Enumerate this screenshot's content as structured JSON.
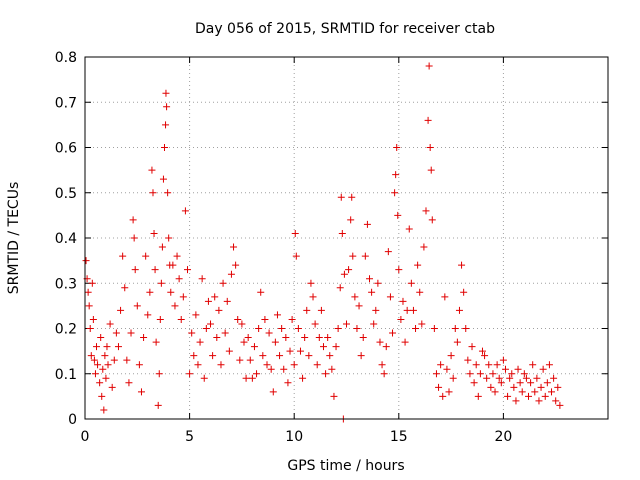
{
  "chart_data": {
    "type": "scatter",
    "title": "Day 056 of 2015, SRMTID for receiver ctab",
    "xlabel": "GPS time / hours",
    "ylabel": "SRMTID / TECUs",
    "xlim": [
      0,
      25
    ],
    "ylim": [
      0,
      0.8
    ],
    "grid": true,
    "marker": "plus",
    "color": "#e00000",
    "x_ticks": [
      0,
      5,
      10,
      15,
      20
    ],
    "x_tick_labels": [
      "0",
      "5",
      "10",
      "15",
      "20"
    ],
    "y_ticks": [
      0,
      0.1,
      0.2,
      0.3,
      0.4,
      0.5,
      0.6,
      0.7,
      0.8
    ],
    "y_tick_labels": [
      "0",
      "0.1",
      "0.2",
      "0.3",
      "0.4",
      "0.5",
      "0.6",
      "0.7",
      "0.8"
    ],
    "series": [
      {
        "name": "SRMTID",
        "points": [
          [
            0.05,
            0.35
          ],
          [
            0.1,
            0.31
          ],
          [
            0.15,
            0.28
          ],
          [
            0.2,
            0.25
          ],
          [
            0.25,
            0.2
          ],
          [
            0.3,
            0.14
          ],
          [
            0.35,
            0.3
          ],
          [
            0.4,
            0.22
          ],
          [
            0.45,
            0.13
          ],
          [
            0.5,
            0.1
          ],
          [
            0.55,
            0.16
          ],
          [
            0.6,
            0.12
          ],
          [
            0.7,
            0.08
          ],
          [
            0.75,
            0.18
          ],
          [
            0.8,
            0.05
          ],
          [
            0.85,
            0.11
          ],
          [
            0.9,
            0.02
          ],
          [
            0.95,
            0.14
          ],
          [
            1.0,
            0.09
          ],
          [
            1.05,
            0.16
          ],
          [
            1.1,
            0.12
          ],
          [
            1.2,
            0.21
          ],
          [
            1.3,
            0.07
          ],
          [
            1.4,
            0.13
          ],
          [
            1.5,
            0.19
          ],
          [
            1.6,
            0.16
          ],
          [
            1.7,
            0.24
          ],
          [
            1.8,
            0.36
          ],
          [
            1.9,
            0.29
          ],
          [
            2.0,
            0.13
          ],
          [
            2.1,
            0.08
          ],
          [
            2.2,
            0.19
          ],
          [
            2.3,
            0.44
          ],
          [
            2.35,
            0.4
          ],
          [
            2.4,
            0.33
          ],
          [
            2.5,
            0.25
          ],
          [
            2.6,
            0.12
          ],
          [
            2.7,
            0.06
          ],
          [
            2.8,
            0.18
          ],
          [
            2.9,
            0.36
          ],
          [
            3.0,
            0.23
          ],
          [
            3.1,
            0.28
          ],
          [
            3.2,
            0.55
          ],
          [
            3.25,
            0.5
          ],
          [
            3.3,
            0.41
          ],
          [
            3.35,
            0.33
          ],
          [
            3.4,
            0.17
          ],
          [
            3.5,
            0.03
          ],
          [
            3.55,
            0.1
          ],
          [
            3.6,
            0.22
          ],
          [
            3.65,
            0.3
          ],
          [
            3.7,
            0.38
          ],
          [
            3.75,
            0.53
          ],
          [
            3.8,
            0.6
          ],
          [
            3.85,
            0.65
          ],
          [
            3.87,
            0.72
          ],
          [
            3.9,
            0.69
          ],
          [
            3.95,
            0.5
          ],
          [
            4.0,
            0.4
          ],
          [
            4.05,
            0.34
          ],
          [
            4.1,
            0.28
          ],
          [
            4.2,
            0.34
          ],
          [
            4.3,
            0.25
          ],
          [
            4.4,
            0.36
          ],
          [
            4.5,
            0.31
          ],
          [
            4.6,
            0.22
          ],
          [
            4.7,
            0.27
          ],
          [
            4.8,
            0.46
          ],
          [
            4.9,
            0.33
          ],
          [
            5.0,
            0.1
          ],
          [
            5.1,
            0.19
          ],
          [
            5.2,
            0.14
          ],
          [
            5.3,
            0.23
          ],
          [
            5.4,
            0.12
          ],
          [
            5.5,
            0.17
          ],
          [
            5.6,
            0.31
          ],
          [
            5.7,
            0.09
          ],
          [
            5.8,
            0.2
          ],
          [
            5.9,
            0.26
          ],
          [
            6.0,
            0.21
          ],
          [
            6.1,
            0.14
          ],
          [
            6.2,
            0.27
          ],
          [
            6.3,
            0.18
          ],
          [
            6.4,
            0.24
          ],
          [
            6.5,
            0.12
          ],
          [
            6.6,
            0.3
          ],
          [
            6.7,
            0.19
          ],
          [
            6.8,
            0.26
          ],
          [
            6.9,
            0.15
          ],
          [
            7.0,
            0.32
          ],
          [
            7.1,
            0.38
          ],
          [
            7.2,
            0.34
          ],
          [
            7.3,
            0.22
          ],
          [
            7.4,
            0.13
          ],
          [
            7.5,
            0.21
          ],
          [
            7.6,
            0.17
          ],
          [
            7.7,
            0.09
          ],
          [
            7.8,
            0.18
          ],
          [
            7.9,
            0.13
          ],
          [
            8.0,
            0.09
          ],
          [
            8.1,
            0.16
          ],
          [
            8.2,
            0.1
          ],
          [
            8.3,
            0.2
          ],
          [
            8.4,
            0.28
          ],
          [
            8.5,
            0.14
          ],
          [
            8.6,
            0.22
          ],
          [
            8.7,
            0.12
          ],
          [
            8.8,
            0.19
          ],
          [
            8.9,
            0.11
          ],
          [
            9.0,
            0.06
          ],
          [
            9.1,
            0.17
          ],
          [
            9.2,
            0.23
          ],
          [
            9.3,
            0.14
          ],
          [
            9.4,
            0.2
          ],
          [
            9.5,
            0.11
          ],
          [
            9.6,
            0.18
          ],
          [
            9.7,
            0.08
          ],
          [
            9.8,
            0.15
          ],
          [
            9.9,
            0.22
          ],
          [
            10.0,
            0.12
          ],
          [
            10.05,
            0.41
          ],
          [
            10.1,
            0.36
          ],
          [
            10.2,
            0.2
          ],
          [
            10.3,
            0.15
          ],
          [
            10.4,
            0.09
          ],
          [
            10.5,
            0.18
          ],
          [
            10.6,
            0.24
          ],
          [
            10.7,
            0.14
          ],
          [
            10.8,
            0.3
          ],
          [
            10.9,
            0.27
          ],
          [
            11.0,
            0.21
          ],
          [
            11.1,
            0.12
          ],
          [
            11.2,
            0.18
          ],
          [
            11.3,
            0.24
          ],
          [
            11.4,
            0.16
          ],
          [
            11.5,
            0.1
          ],
          [
            11.6,
            0.18
          ],
          [
            11.7,
            0.14
          ],
          [
            11.8,
            0.11
          ],
          [
            11.9,
            0.05
          ],
          [
            12.0,
            0.16
          ],
          [
            12.1,
            0.2
          ],
          [
            12.2,
            0.29
          ],
          [
            12.25,
            0.49
          ],
          [
            12.3,
            0.41
          ],
          [
            12.35,
            0.0
          ],
          [
            12.4,
            0.32
          ],
          [
            12.5,
            0.21
          ],
          [
            12.6,
            0.33
          ],
          [
            12.7,
            0.44
          ],
          [
            12.75,
            0.49
          ],
          [
            12.8,
            0.36
          ],
          [
            12.9,
            0.27
          ],
          [
            13.0,
            0.2
          ],
          [
            13.1,
            0.25
          ],
          [
            13.2,
            0.14
          ],
          [
            13.3,
            0.18
          ],
          [
            13.4,
            0.36
          ],
          [
            13.5,
            0.43
          ],
          [
            13.6,
            0.31
          ],
          [
            13.7,
            0.28
          ],
          [
            13.8,
            0.21
          ],
          [
            13.9,
            0.24
          ],
          [
            14.0,
            0.3
          ],
          [
            14.1,
            0.17
          ],
          [
            14.2,
            0.12
          ],
          [
            14.3,
            0.1
          ],
          [
            14.4,
            0.16
          ],
          [
            14.5,
            0.37
          ],
          [
            14.6,
            0.27
          ],
          [
            14.7,
            0.19
          ],
          [
            14.8,
            0.5
          ],
          [
            14.85,
            0.54
          ],
          [
            14.9,
            0.6
          ],
          [
            14.95,
            0.45
          ],
          [
            15.0,
            0.33
          ],
          [
            15.1,
            0.22
          ],
          [
            15.2,
            0.26
          ],
          [
            15.3,
            0.17
          ],
          [
            15.4,
            0.24
          ],
          [
            15.5,
            0.42
          ],
          [
            15.6,
            0.3
          ],
          [
            15.7,
            0.24
          ],
          [
            15.8,
            0.2
          ],
          [
            15.9,
            0.34
          ],
          [
            16.0,
            0.28
          ],
          [
            16.1,
            0.21
          ],
          [
            16.2,
            0.38
          ],
          [
            16.3,
            0.46
          ],
          [
            16.4,
            0.66
          ],
          [
            16.45,
            0.78
          ],
          [
            16.5,
            0.6
          ],
          [
            16.55,
            0.55
          ],
          [
            16.6,
            0.44
          ],
          [
            16.7,
            0.2
          ],
          [
            16.8,
            0.1
          ],
          [
            16.9,
            0.07
          ],
          [
            17.0,
            0.12
          ],
          [
            17.1,
            0.05
          ],
          [
            17.2,
            0.27
          ],
          [
            17.3,
            0.11
          ],
          [
            17.4,
            0.06
          ],
          [
            17.5,
            0.14
          ],
          [
            17.6,
            0.09
          ],
          [
            17.7,
            0.2
          ],
          [
            17.8,
            0.17
          ],
          [
            17.9,
            0.24
          ],
          [
            18.0,
            0.34
          ],
          [
            18.1,
            0.28
          ],
          [
            18.2,
            0.2
          ],
          [
            18.3,
            0.13
          ],
          [
            18.4,
            0.1
          ],
          [
            18.5,
            0.16
          ],
          [
            18.6,
            0.08
          ],
          [
            18.7,
            0.12
          ],
          [
            18.8,
            0.05
          ],
          [
            18.9,
            0.1
          ],
          [
            19.0,
            0.15
          ],
          [
            19.1,
            0.14
          ],
          [
            19.2,
            0.09
          ],
          [
            19.3,
            0.12
          ],
          [
            19.4,
            0.07
          ],
          [
            19.5,
            0.1
          ],
          [
            19.6,
            0.06
          ],
          [
            19.7,
            0.12
          ],
          [
            19.8,
            0.09
          ],
          [
            19.9,
            0.08
          ],
          [
            20.0,
            0.13
          ],
          [
            20.1,
            0.11
          ],
          [
            20.2,
            0.05
          ],
          [
            20.3,
            0.09
          ],
          [
            20.4,
            0.1
          ],
          [
            20.5,
            0.07
          ],
          [
            20.6,
            0.04
          ],
          [
            20.7,
            0.11
          ],
          [
            20.8,
            0.08
          ],
          [
            20.9,
            0.06
          ],
          [
            21.0,
            0.1
          ],
          [
            21.1,
            0.09
          ],
          [
            21.2,
            0.05
          ],
          [
            21.3,
            0.08
          ],
          [
            21.4,
            0.12
          ],
          [
            21.5,
            0.06
          ],
          [
            21.6,
            0.09
          ],
          [
            21.7,
            0.04
          ],
          [
            21.8,
            0.07
          ],
          [
            21.9,
            0.11
          ],
          [
            22.0,
            0.05
          ],
          [
            22.1,
            0.08
          ],
          [
            22.2,
            0.12
          ],
          [
            22.3,
            0.06
          ],
          [
            22.4,
            0.09
          ],
          [
            22.5,
            0.04
          ],
          [
            22.6,
            0.07
          ],
          [
            22.7,
            0.03
          ]
        ]
      }
    ]
  }
}
